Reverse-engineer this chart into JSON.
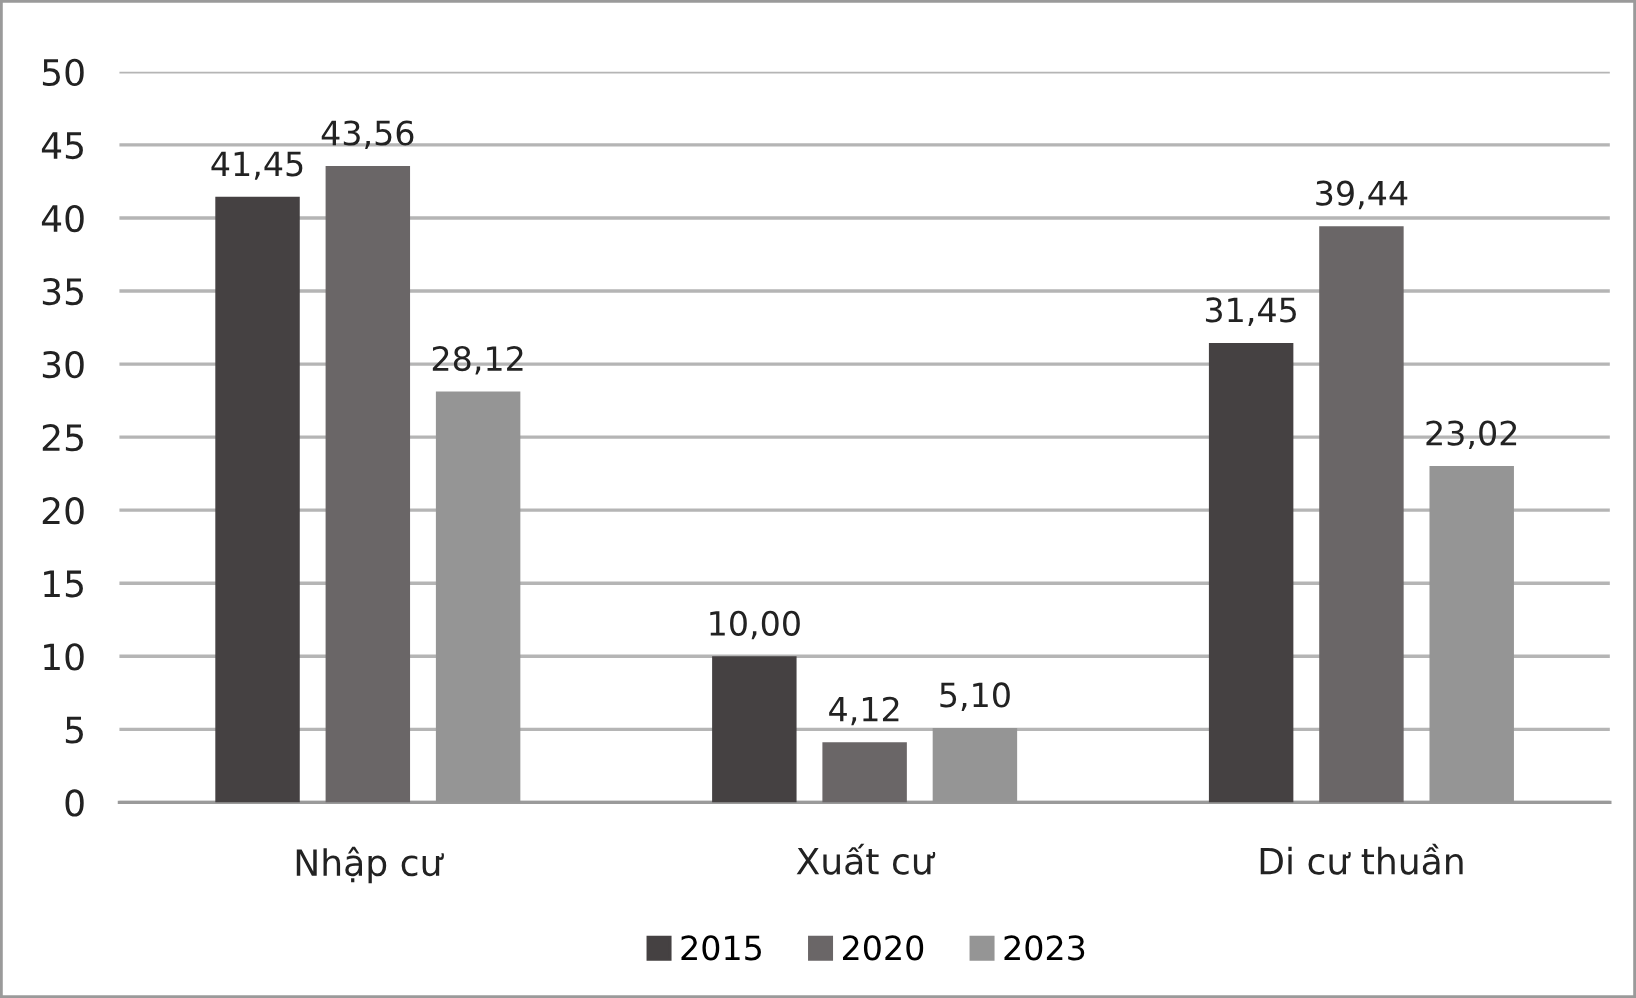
{
  "chart_data": {
    "type": "bar",
    "categories": [
      "Nhập cư",
      "Xuất cư",
      "Di cư thuần"
    ],
    "series": [
      {
        "name": "2015",
        "color": "#454142",
        "values": [
          41.45,
          10.0,
          31.45
        ],
        "value_labels": [
          "41,45",
          "10,00",
          "31,45"
        ]
      },
      {
        "name": "2020",
        "color": "#6a6667",
        "values": [
          43.56,
          4.12,
          39.44
        ],
        "value_labels": [
          "43,56",
          "4,12",
          "39,44"
        ]
      },
      {
        "name": "2023",
        "color": "#959595",
        "values": [
          28.12,
          5.1,
          23.02
        ],
        "value_labels": [
          "28,12",
          "5,10",
          "23,02"
        ]
      }
    ],
    "ylim": [
      0,
      50
    ],
    "yticks": [
      0,
      5,
      10,
      15,
      20,
      25,
      30,
      35,
      40,
      45,
      50
    ],
    "grid": "y",
    "legend": "bottom"
  }
}
